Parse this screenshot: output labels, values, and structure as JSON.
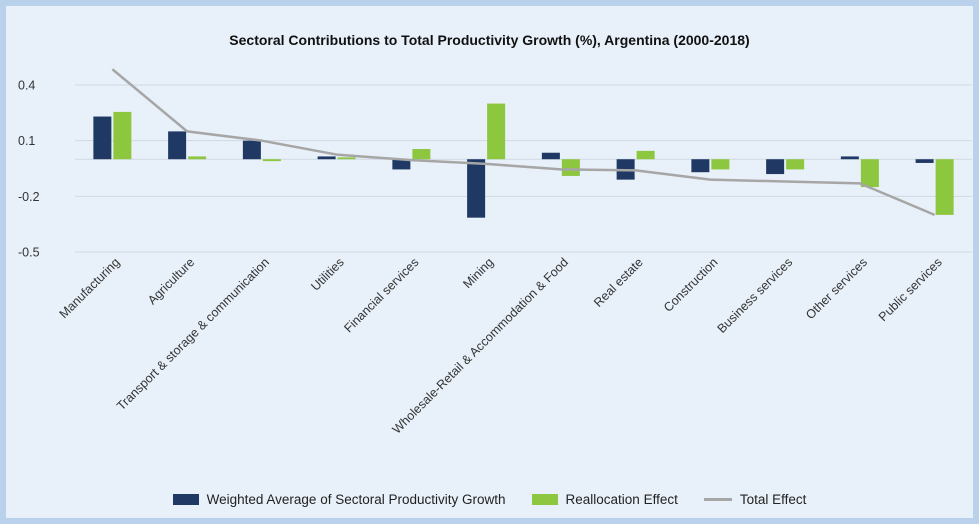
{
  "chart_data": {
    "type": "bar",
    "title": "Sectoral Contributions to Total Productivity Growth (%), Argentina (2000-2018)",
    "xlabel": "",
    "ylabel": "",
    "ylim": [
      -0.5,
      0.5
    ],
    "yticks": [
      0.4,
      0.1,
      -0.2,
      -0.5
    ],
    "ytick_labels": [
      "0.4",
      "0.1",
      "-0.2",
      "-0.5"
    ],
    "grid": true,
    "legend_position": "bottom",
    "categories": [
      "Manufacturing",
      "Agriculture",
      "Transport & storage & communication",
      "Utilities",
      "Financial services",
      "Mining",
      "Wholesale-Retail & Accommodation & Food",
      "Real estate",
      "Construction",
      "Business services",
      "Other services",
      "Public services"
    ],
    "series": [
      {
        "name": "Weighted Average of Sectoral Productivity Growth",
        "type": "bar",
        "color": "#1f3864",
        "values": [
          0.23,
          0.15,
          0.1,
          0.015,
          -0.055,
          -0.315,
          0.035,
          -0.11,
          -0.07,
          -0.08,
          0.015,
          -0.02
        ]
      },
      {
        "name": "Reallocation Effect",
        "type": "bar",
        "color": "#8dc63f",
        "values": [
          0.255,
          0.015,
          -0.01,
          0.01,
          0.055,
          0.3,
          -0.09,
          0.045,
          -0.055,
          -0.055,
          -0.15,
          -0.3
        ]
      },
      {
        "name": "Total Effect",
        "type": "line",
        "color": "#a6a6a6",
        "values": [
          0.485,
          0.15,
          0.1,
          0.025,
          -0.005,
          -0.025,
          -0.055,
          -0.06,
          -0.11,
          -0.12,
          -0.13,
          -0.3
        ]
      }
    ]
  }
}
